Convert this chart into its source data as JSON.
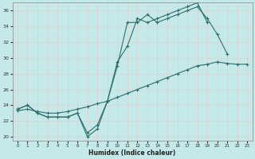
{
  "title": "",
  "xlabel": "Humidex (Indice chaleur)",
  "bg_color": "#c5e8e8",
  "grid_color": "#e0d0d0",
  "line_color": "#2e6e6e",
  "xlim": [
    -0.5,
    23.5
  ],
  "ylim": [
    19.5,
    37.0
  ],
  "xticks": [
    0,
    1,
    2,
    3,
    4,
    5,
    6,
    7,
    8,
    9,
    10,
    11,
    12,
    13,
    14,
    15,
    16,
    17,
    18,
    19,
    20,
    21,
    22,
    23
  ],
  "yticks": [
    20,
    22,
    24,
    26,
    28,
    30,
    32,
    34,
    36
  ],
  "line1_x": [
    0,
    1,
    2,
    3,
    4,
    5,
    6,
    7,
    8,
    9,
    10,
    11,
    12,
    13,
    14,
    15,
    16,
    17,
    18,
    19,
    20,
    21
  ],
  "line1_y": [
    23.5,
    24.0,
    23.0,
    22.5,
    22.5,
    22.5,
    23.0,
    20.0,
    21.0,
    24.5,
    29.0,
    34.5,
    34.5,
    35.5,
    34.5,
    35.0,
    35.5,
    36.0,
    36.5,
    35.0,
    33.0,
    30.5
  ],
  "line2_x": [
    0,
    1,
    2,
    3,
    4,
    5,
    6,
    7,
    8,
    9,
    10,
    11,
    12,
    13,
    14,
    15,
    16,
    17,
    18,
    19
  ],
  "line2_y": [
    23.5,
    24.0,
    23.0,
    22.5,
    22.5,
    22.5,
    23.0,
    20.5,
    21.5,
    24.5,
    29.5,
    31.5,
    35.0,
    34.5,
    35.0,
    35.5,
    36.0,
    36.5,
    37.0,
    34.5
  ],
  "line3_x": [
    0,
    1,
    2,
    3,
    4,
    5,
    6,
    7,
    8,
    9,
    10,
    11,
    12,
    13,
    14,
    15,
    16,
    17,
    18,
    19,
    20,
    21,
    22,
    23
  ],
  "line3_y": [
    23.3,
    23.5,
    23.2,
    23.0,
    23.0,
    23.2,
    23.5,
    23.8,
    24.2,
    24.5,
    25.0,
    25.5,
    26.0,
    26.5,
    27.0,
    27.5,
    28.0,
    28.5,
    29.0,
    29.2,
    29.5,
    29.3,
    29.2,
    29.2
  ]
}
